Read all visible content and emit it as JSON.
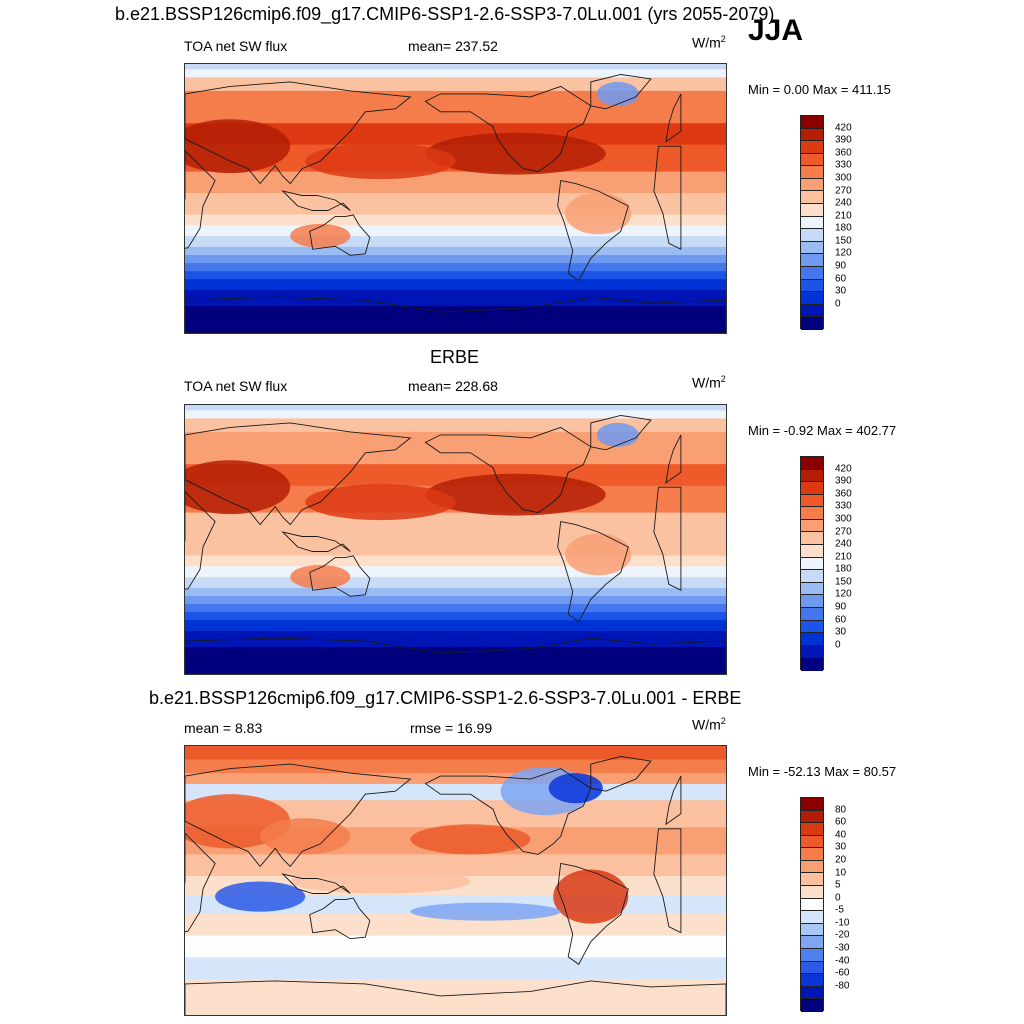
{
  "season": "JJA",
  "units": {
    "base": "W/m",
    "exp": "2"
  },
  "colors": {
    "abs_scale": [
      "#00007f",
      "#0015b5",
      "#0033d6",
      "#1a55e8",
      "#4477ee",
      "#7099f0",
      "#9bbcf2",
      "#c7dbf7",
      "#eef4fb",
      "#fde0cc",
      "#fbc2a1",
      "#f8a074",
      "#f57d4c",
      "#ee5a2a",
      "#dd3a14",
      "#b41e05",
      "#8a0000"
    ],
    "diff_scale": [
      "#00007f",
      "#0015b5",
      "#0a35d8",
      "#2a5ae8",
      "#5080ee",
      "#7ea6f2",
      "#a9c7f5",
      "#d5e5fa",
      "#ffffff",
      "#fde0cc",
      "#fbc0a0",
      "#f8a073",
      "#f47d4c",
      "#ec5a2a",
      "#d83a14",
      "#b01c05",
      "#8a0000"
    ],
    "land_outline": "#1a1a1a"
  },
  "panels": [
    {
      "title": "b.e21.BSSP126cmip6.f09_g17.CMIP6-SSP1-2.6-SSP3-7.0Lu.001 (yrs 2055-2079)",
      "left_label": "TOA net SW flux",
      "center_label": "mean= 237.52",
      "minmax": "Min =   0.00 Max = 411.15",
      "scale": "abs",
      "colorbar_labels": [
        "420",
        "390",
        "360",
        "330",
        "300",
        "270",
        "240",
        "210",
        "180",
        "150",
        "120",
        "90",
        "60",
        "30",
        "0"
      ]
    },
    {
      "title": "ERBE",
      "left_label": "TOA net SW flux",
      "center_label": "mean= 228.68",
      "minmax": "Min =  -0.92 Max = 402.77",
      "scale": "abs",
      "colorbar_labels": [
        "420",
        "390",
        "360",
        "330",
        "300",
        "270",
        "240",
        "210",
        "180",
        "150",
        "120",
        "90",
        "60",
        "30",
        "0"
      ]
    },
    {
      "title": "b.e21.BSSP126cmip6.f09_g17.CMIP6-SSP1-2.6-SSP3-7.0Lu.001 - ERBE",
      "left_label": "mean =   8.83",
      "center_label": "rmse =  16.99",
      "minmax": "Min = -52.13 Max =  80.57",
      "scale": "diff",
      "colorbar_labels": [
        "80",
        "60",
        "40",
        "30",
        "20",
        "10",
        "5",
        "0",
        "-5",
        "-10",
        "-20",
        "-30",
        "-40",
        "-60",
        "-80"
      ]
    }
  ]
}
